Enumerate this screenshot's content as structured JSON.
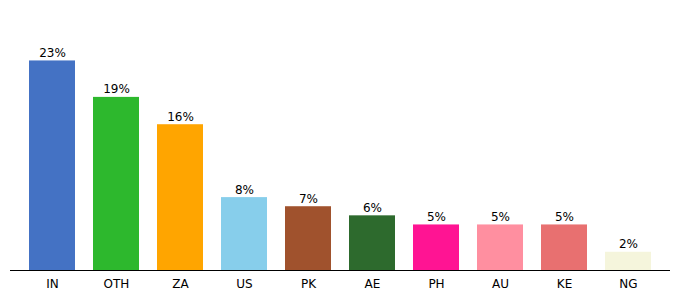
{
  "chart_data": {
    "type": "bar",
    "categories": [
      "IN",
      "OTH",
      "ZA",
      "US",
      "PK",
      "AE",
      "PH",
      "AU",
      "KE",
      "NG"
    ],
    "values": [
      23,
      19,
      16,
      8,
      7,
      6,
      5,
      5,
      5,
      2
    ],
    "value_labels": [
      "23%",
      "19%",
      "16%",
      "8%",
      "7%",
      "6%",
      "5%",
      "5%",
      "5%",
      "2%"
    ],
    "colors": [
      "#4472c4",
      "#2db82d",
      "#ffa500",
      "#87ceeb",
      "#a0522d",
      "#2d6a2d",
      "#ff1493",
      "#ff8fa0",
      "#e87070",
      "#f5f5dc"
    ],
    "ylim": [
      0,
      27
    ],
    "data_labels": true,
    "grid": false,
    "tick_labels": "x"
  }
}
